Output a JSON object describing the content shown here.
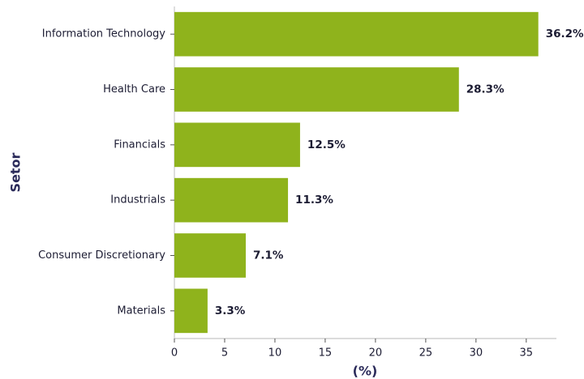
{
  "chart_data": {
    "type": "barh",
    "categories": [
      "Information Technology",
      "Health Care",
      "Financials",
      "Industrials",
      "Consumer Discretionary",
      "Materials"
    ],
    "values": [
      36.2,
      28.3,
      12.5,
      11.3,
      7.1,
      3.3
    ],
    "value_labels": [
      "36.2%",
      "28.3%",
      "12.5%",
      "11.3%",
      "7.1%",
      "3.3%"
    ],
    "color": "#8fb31c",
    "xlabel": "(%)",
    "ylabel": "Setor",
    "xlim": [
      0,
      38
    ],
    "xticks": [
      0,
      5,
      10,
      15,
      20,
      25,
      30,
      35
    ],
    "grid": false
  }
}
